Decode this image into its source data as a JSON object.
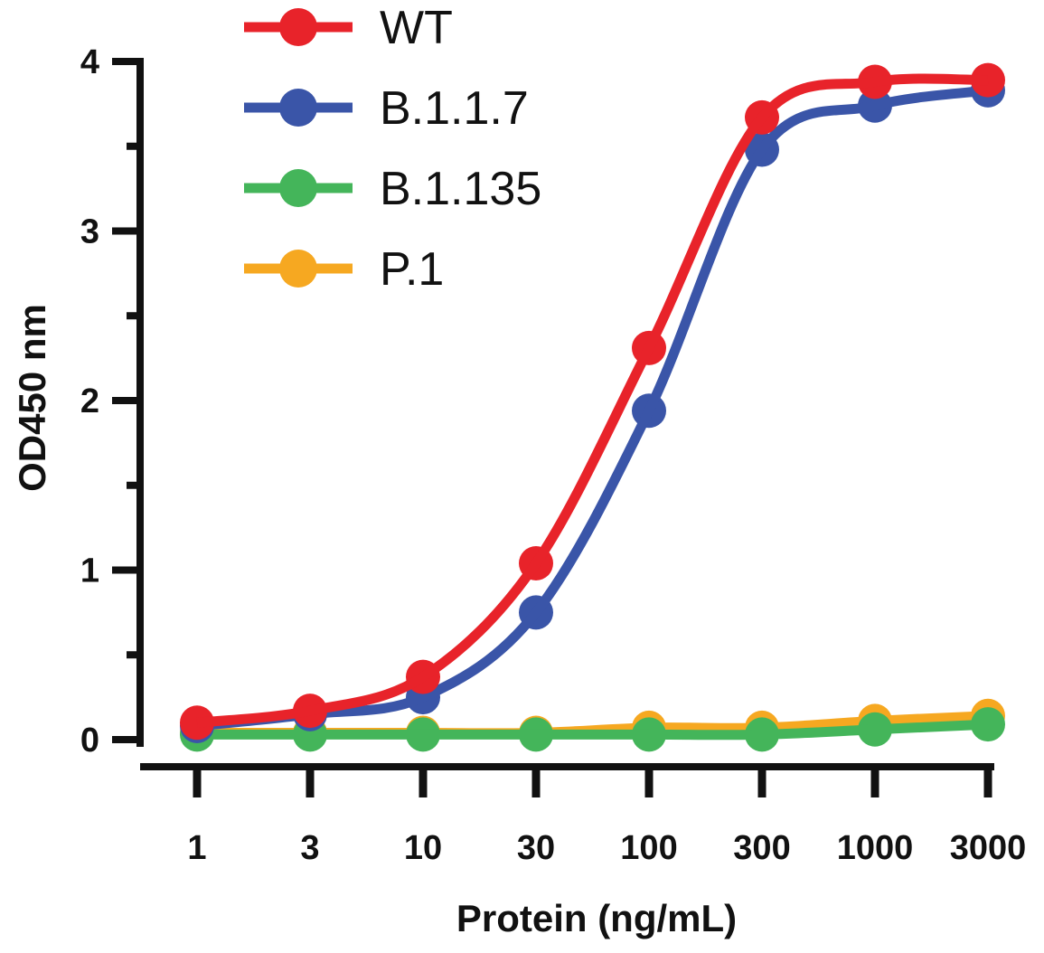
{
  "chart_data": {
    "type": "line",
    "xlabel": "Protein (ng/mL)",
    "ylabel": "OD450 nm",
    "x_scale": "log",
    "categories": [
      "1",
      "3",
      "10",
      "30",
      "100",
      "300",
      "1000",
      "3000"
    ],
    "x": [
      1,
      3,
      10,
      30,
      100,
      300,
      1000,
      3000
    ],
    "ylim": [
      0,
      4
    ],
    "yticks": [
      "0",
      "1",
      "2",
      "3",
      "4"
    ],
    "grid": false,
    "legend_position": "top-left",
    "series": [
      {
        "name": "WT",
        "color": "#e8232a",
        "values": [
          0.1,
          0.17,
          0.37,
          1.04,
          2.31,
          3.67,
          3.88,
          3.89
        ]
      },
      {
        "name": "B.1.1.7",
        "color": "#3a55a8",
        "values": [
          0.08,
          0.15,
          0.25,
          0.75,
          1.94,
          3.48,
          3.74,
          3.83
        ]
      },
      {
        "name": "B.1.135",
        "color": "#44b55a",
        "values": [
          0.03,
          0.03,
          0.03,
          0.03,
          0.03,
          0.03,
          0.06,
          0.09
        ]
      },
      {
        "name": "P.1",
        "color": "#f6a821",
        "values": [
          0.04,
          0.04,
          0.04,
          0.04,
          0.07,
          0.07,
          0.11,
          0.14
        ]
      }
    ]
  }
}
